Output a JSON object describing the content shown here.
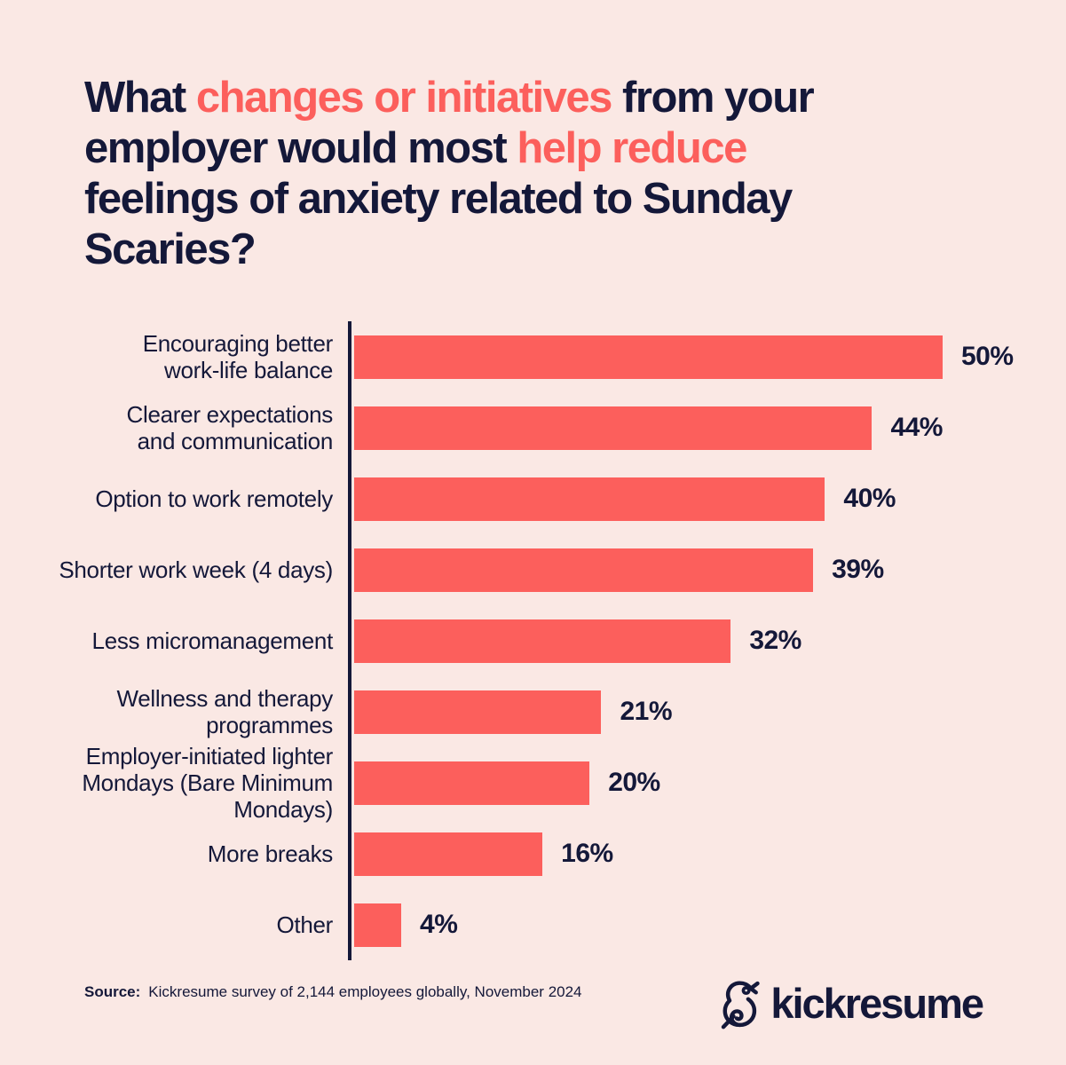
{
  "colors": {
    "background": "#FAE8E4",
    "coral": "#FC5F5C",
    "navy": "#141839"
  },
  "title": {
    "full_text": "What changes or initiatives from your employer would most help reduce feelings of anxiety related to Sunday Scaries?",
    "lines": [
      [
        {
          "text": "What ",
          "accent": false
        },
        {
          "text": "changes or initiatives",
          "accent": true
        },
        {
          "text": " from your",
          "accent": false
        }
      ],
      [
        {
          "text": "employer would most ",
          "accent": false
        },
        {
          "text": "help reduce",
          "accent": true
        }
      ],
      [
        {
          "text": "feelings of anxiety related to Sunday",
          "accent": false
        }
      ],
      [
        {
          "text": "Scaries?",
          "accent": false
        }
      ]
    ]
  },
  "chart_data": {
    "type": "bar",
    "orientation": "horizontal",
    "title": "What changes or initiatives from your employer would most help reduce feelings of anxiety related to Sunday Scaries?",
    "xlabel": "",
    "ylabel": "",
    "grid": false,
    "legend": false,
    "value_suffix": "%",
    "categories": [
      "Encouraging better\nwork-life balance",
      "Clearer expectations\nand communication",
      "Option to work remotely",
      "Shorter work week (4 days)",
      "Less micromanagement",
      "Wellness and therapy\nprogrammes",
      "Employer-initiated lighter\nMondays (Bare Minimum\nMondays)",
      "More breaks",
      "Other"
    ],
    "values": [
      50,
      44,
      40,
      39,
      32,
      21,
      20,
      16,
      4
    ],
    "value_labels": [
      "50%",
      "44%",
      "40%",
      "39%",
      "32%",
      "21%",
      "20%",
      "16%",
      "4%"
    ]
  },
  "source": {
    "label": "Source:",
    "text": "Kickresume survey of 2,144 employees globally, November 2024"
  },
  "footer_logo": {
    "brand": "kickresume",
    "icon": "chameleon-icon"
  }
}
